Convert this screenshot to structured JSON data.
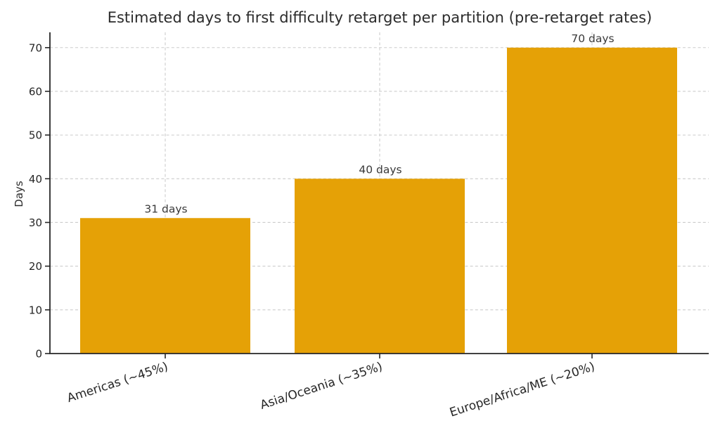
{
  "chart_data": {
    "type": "bar",
    "title": "Estimated days to first difficulty retarget per partition (pre-retarget rates)",
    "xlabel": "",
    "ylabel": "Days",
    "categories": [
      "Americas (~45%)",
      "Asia/Oceania (~35%)",
      "Europe/Africa/ME (~20%)"
    ],
    "values": [
      31,
      40,
      70
    ],
    "bar_labels": [
      "31 days",
      "40 days",
      "70 days"
    ],
    "yticks": [
      0,
      10,
      20,
      30,
      40,
      50,
      60,
      70
    ],
    "ylim": [
      0,
      73.5
    ],
    "grid": true,
    "legend": false,
    "colors": {
      "bar": "#E5A106",
      "grid": "#cccccc",
      "axis": "#262626",
      "tick_text": "#262626",
      "annotation_text": "#3a3a3a",
      "background": "#ffffff"
    }
  }
}
